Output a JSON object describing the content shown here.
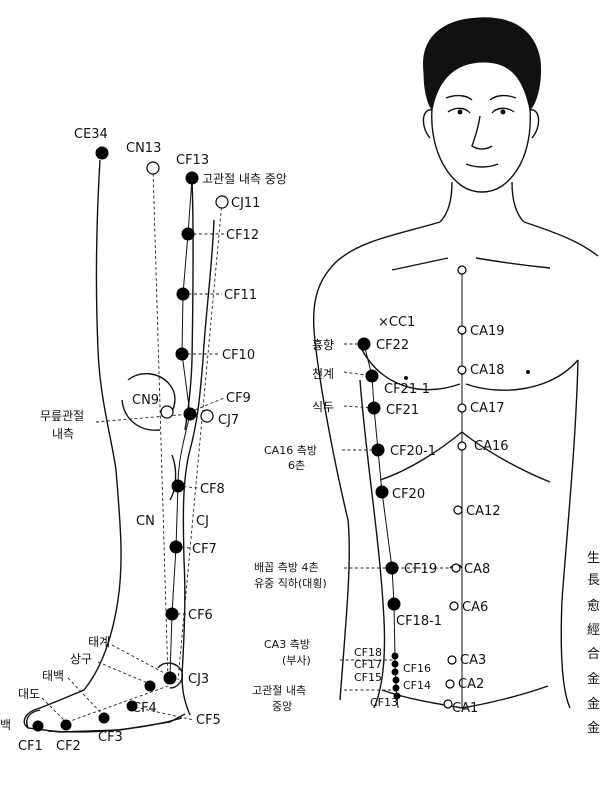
{
  "leg": {
    "ce34": "CE34",
    "cn13": "CN13",
    "cf13": "CF13",
    "cf13_note": "고관절 내측 중앙",
    "cj11": "CJ11",
    "cf12": "CF12",
    "cf11": "CF11",
    "cf10": "CF10",
    "cn9": "CN9",
    "cf9": "CF9",
    "cj7": "CJ7",
    "knee_note_1": "무릎관절",
    "knee_note_2": "내측",
    "cf8": "CF8",
    "cn": "CN",
    "cj": "CJ",
    "cf7": "CF7",
    "cf6": "CF6",
    "taegye": "태계",
    "sanggu": "상구",
    "taebaek": "태백",
    "daedo": "대도",
    "baek_cut": "백",
    "cj3": "CJ3",
    "cf4": "CF4",
    "cf5": "CF5",
    "cf1": "CF1",
    "cf2": "CF2",
    "cf3": "CF3"
  },
  "torso": {
    "cc1": "×CC1",
    "hyunghyang": "흉향",
    "cf22": "CF22",
    "cheongye": "천계",
    "cf21_1": "CF21-1",
    "sikdu": "식두",
    "cf21": "CF21",
    "ca16_note_1": "CA16 측방",
    "ca16_note_2": "6촌",
    "cf20_1": "CF20-1",
    "cf20": "CF20",
    "navel_note_1": "배꼽 측방 4촌",
    "navel_note_2": "유중 직하(대횡)",
    "cf19": "CF19",
    "cf18_1": "CF18-1",
    "ca3_note_1": "CA3 측방",
    "ca3_note_2": "(부사)",
    "cf18": "CF18",
    "cf17": "CF17",
    "cf15": "CF15",
    "cf16": "CF16",
    "cf14": "CF14",
    "hip_note_1": "고관절 내측",
    "hip_note_2": "중앙",
    "cf13": "CF13",
    "ca19": "CA19",
    "ca18": "CA18",
    "ca17": "CA17",
    "ca16": "CA16",
    "ca12": "CA12",
    "ca8": "CA8",
    "ca6": "CA6",
    "ca3": "CA3",
    "ca2": "CA2",
    "ca1": "CA1"
  },
  "side_text": [
    "生",
    "長",
    "愈",
    "經",
    "合",
    "金",
    "金",
    "金"
  ]
}
